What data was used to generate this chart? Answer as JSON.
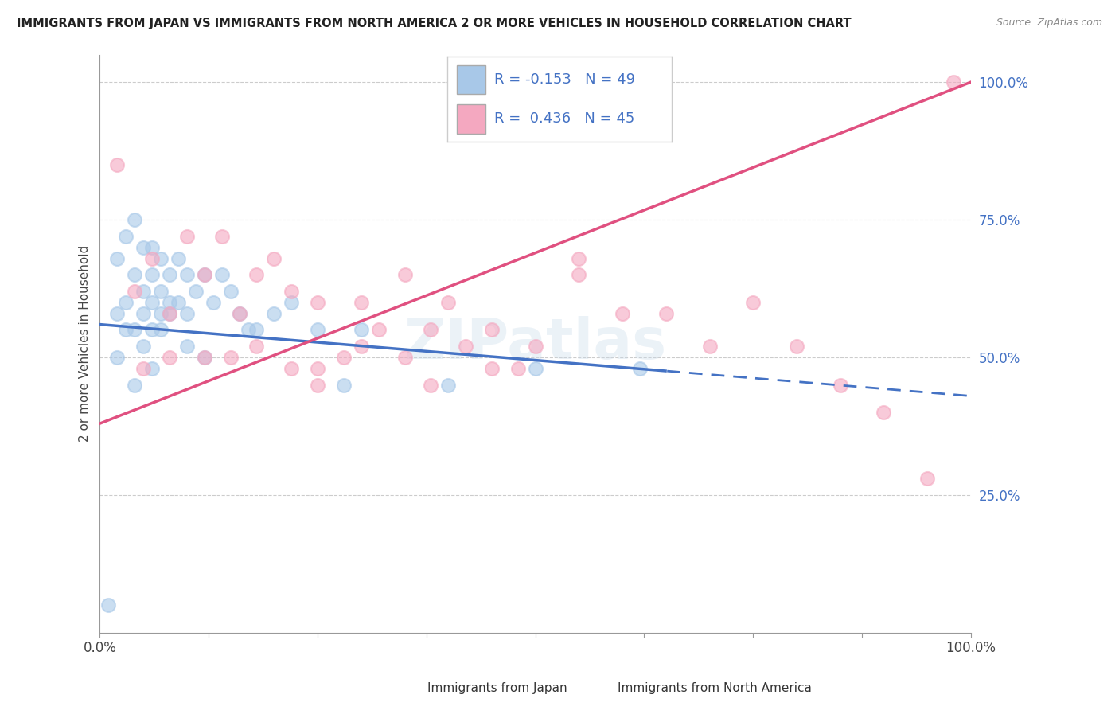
{
  "title": "IMMIGRANTS FROM JAPAN VS IMMIGRANTS FROM NORTH AMERICA 2 OR MORE VEHICLES IN HOUSEHOLD CORRELATION CHART",
  "source": "Source: ZipAtlas.com",
  "ylabel": "2 or more Vehicles in Household",
  "ytick_labels": [
    "25.0%",
    "50.0%",
    "75.0%",
    "100.0%"
  ],
  "ytick_values": [
    25,
    50,
    75,
    100
  ],
  "xlim": [
    0,
    100
  ],
  "ylim": [
    0,
    105
  ],
  "legend_blue_r": "-0.153",
  "legend_blue_n": "49",
  "legend_pink_r": "0.436",
  "legend_pink_n": "45",
  "color_blue": "#a8c8e8",
  "color_pink": "#f4a8c0",
  "line_blue": "#4472c4",
  "line_pink": "#e05080",
  "text_color": "#4472c4",
  "blue_line_start_y": 56,
  "blue_line_end_y": 43,
  "pink_line_start_y": 38,
  "pink_line_end_y": 100,
  "blue_solid_end_x": 65,
  "blue_points_x": [
    1,
    2,
    2,
    3,
    3,
    4,
    4,
    5,
    5,
    5,
    6,
    6,
    6,
    7,
    7,
    7,
    8,
    8,
    9,
    9,
    10,
    10,
    11,
    12,
    13,
    14,
    15,
    16,
    17,
    18,
    20,
    22,
    25,
    28,
    30,
    2,
    3,
    4,
    5,
    6,
    7,
    8,
    10,
    12,
    40,
    50,
    62,
    4,
    6
  ],
  "blue_points_y": [
    5,
    58,
    68,
    60,
    72,
    65,
    75,
    58,
    62,
    70,
    55,
    65,
    70,
    58,
    62,
    68,
    58,
    65,
    60,
    68,
    58,
    65,
    62,
    65,
    60,
    65,
    62,
    58,
    55,
    55,
    58,
    60,
    55,
    45,
    55,
    50,
    55,
    55,
    52,
    60,
    55,
    60,
    52,
    50,
    45,
    48,
    48,
    45,
    48
  ],
  "pink_points_x": [
    2,
    4,
    6,
    8,
    10,
    12,
    14,
    16,
    18,
    20,
    22,
    25,
    28,
    30,
    32,
    35,
    38,
    40,
    42,
    45,
    48,
    50,
    55,
    60,
    65,
    70,
    75,
    80,
    85,
    90,
    95,
    98,
    5,
    8,
    12,
    18,
    25,
    35,
    45,
    55,
    22,
    30,
    38,
    15,
    25
  ],
  "pink_points_y": [
    85,
    62,
    68,
    58,
    72,
    65,
    72,
    58,
    65,
    68,
    62,
    60,
    50,
    60,
    55,
    65,
    55,
    60,
    52,
    55,
    48,
    52,
    65,
    58,
    58,
    52,
    60,
    52,
    45,
    40,
    28,
    100,
    48,
    50,
    50,
    52,
    48,
    50,
    48,
    68,
    48,
    52,
    45,
    50,
    45
  ]
}
